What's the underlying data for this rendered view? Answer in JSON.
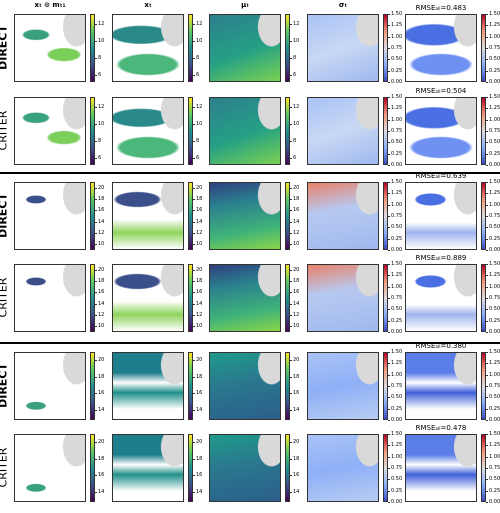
{
  "column_titles": [
    "xₜ ⊙ mₜ₁",
    "xₜ",
    "μₜ",
    "σₜ"
  ],
  "groups": [
    {
      "rows": [
        {
          "label": "DIRECT",
          "rmse": "RMSEₐₗₗ=0.483"
        },
        {
          "label": "CRITER",
          "rmse": "RMSEₐₗₗ=0.504"
        }
      ],
      "value_scale": {
        "lim": [
          5.2,
          13.2
        ],
        "ticks": [
          6,
          8,
          10,
          12
        ]
      },
      "std_scale": {
        "lim": [
          0,
          1.5
        ],
        "ticks": [
          {
            "value": 0,
            "label": "0.00"
          },
          {
            "value": 0.25,
            "label": "0.25"
          },
          {
            "value": 0.5,
            "label": "0.50"
          },
          {
            "value": 0.75,
            "label": "0.75"
          },
          {
            "value": 1,
            "label": "1.00"
          },
          {
            "value": 1.25,
            "label": "1.25"
          },
          {
            "value": 1.5,
            "label": "1.50"
          }
        ]
      }
    },
    {
      "rows": [
        {
          "label": "DIRECT",
          "rmse": "RMSEₐₗₗ=0.639"
        },
        {
          "label": "CRITER",
          "rmse": "RMSEₐₗₗ=0.889"
        }
      ],
      "value_scale": {
        "lim": [
          9,
          21
        ],
        "ticks": [
          10,
          12,
          14,
          16,
          18,
          20
        ]
      },
      "std_scale": {
        "lim": [
          0,
          1.5
        ],
        "ticks": [
          {
            "value": 0,
            "label": "0.00"
          },
          {
            "value": 0.25,
            "label": "0.25"
          },
          {
            "value": 0.5,
            "label": "0.50"
          },
          {
            "value": 0.75,
            "label": "0.75"
          },
          {
            "value": 1,
            "label": "1.00"
          },
          {
            "value": 1.25,
            "label": "1.25"
          },
          {
            "value": 1.5,
            "label": "1.50"
          }
        ]
      }
    },
    {
      "rows": [
        {
          "label": "DIRECT",
          "rmse": "RMSEₐₗₗ=0.380"
        },
        {
          "label": "CRITER",
          "rmse": "RMSEₐₗₗ=0.478"
        }
      ],
      "value_scale": {
        "lim": [
          12.8,
          21
        ],
        "ticks": [
          14,
          16,
          18,
          20
        ]
      },
      "std_scale": {
        "lim": [
          0,
          1.5
        ],
        "ticks": [
          {
            "value": 0,
            "label": "0.00"
          },
          {
            "value": 0.25,
            "label": "0.25"
          },
          {
            "value": 0.5,
            "label": "0.50"
          },
          {
            "value": 0.75,
            "label": "0.75"
          },
          {
            "value": 1,
            "label": "1.00"
          },
          {
            "value": 1.25,
            "label": "1.25"
          },
          {
            "value": 1.5,
            "label": "1.50"
          }
        ]
      }
    }
  ]
}
